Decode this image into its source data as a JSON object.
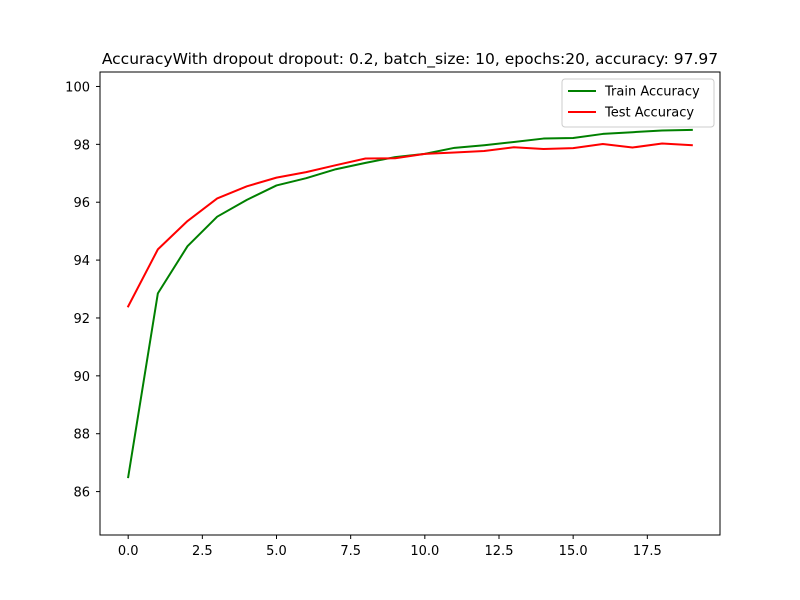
{
  "chart_data": {
    "type": "line",
    "title": "AccuracyWith dropout dropout: 0.2, batch_size: 10, epochs:20, accuracy: 97.97",
    "xlabel": "",
    "ylabel": "",
    "xlim": [
      -0.95,
      19.95
    ],
    "ylim": [
      84.5,
      100.5
    ],
    "x": [
      0,
      1,
      2,
      3,
      4,
      5,
      6,
      7,
      8,
      9,
      10,
      11,
      12,
      13,
      14,
      15,
      16,
      17,
      18,
      19
    ],
    "x_ticks": [
      0.0,
      2.5,
      5.0,
      7.5,
      10.0,
      12.5,
      15.0,
      17.5
    ],
    "x_tick_labels": [
      "0.0",
      "2.5",
      "5.0",
      "7.5",
      "10.0",
      "12.5",
      "15.0",
      "17.5"
    ],
    "y_ticks": [
      86,
      88,
      90,
      92,
      94,
      96,
      98,
      100
    ],
    "y_tick_labels": [
      "86",
      "88",
      "90",
      "92",
      "94",
      "96",
      "98",
      "100"
    ],
    "grid": false,
    "legend_position": "top-right",
    "series": [
      {
        "name": "Train Accuracy",
        "color": "#008000",
        "values": [
          86.5,
          92.85,
          94.48,
          95.5,
          96.08,
          96.58,
          96.83,
          97.14,
          97.36,
          97.56,
          97.67,
          97.88,
          97.97,
          98.08,
          98.2,
          98.22,
          98.36,
          98.42,
          98.48,
          98.5
        ]
      },
      {
        "name": "Test Accuracy",
        "color": "#ff0000",
        "values": [
          92.4,
          94.37,
          95.35,
          96.13,
          96.55,
          96.85,
          97.04,
          97.28,
          97.51,
          97.52,
          97.67,
          97.72,
          97.77,
          97.9,
          97.84,
          97.87,
          98.01,
          97.89,
          98.03,
          97.97
        ]
      }
    ]
  }
}
